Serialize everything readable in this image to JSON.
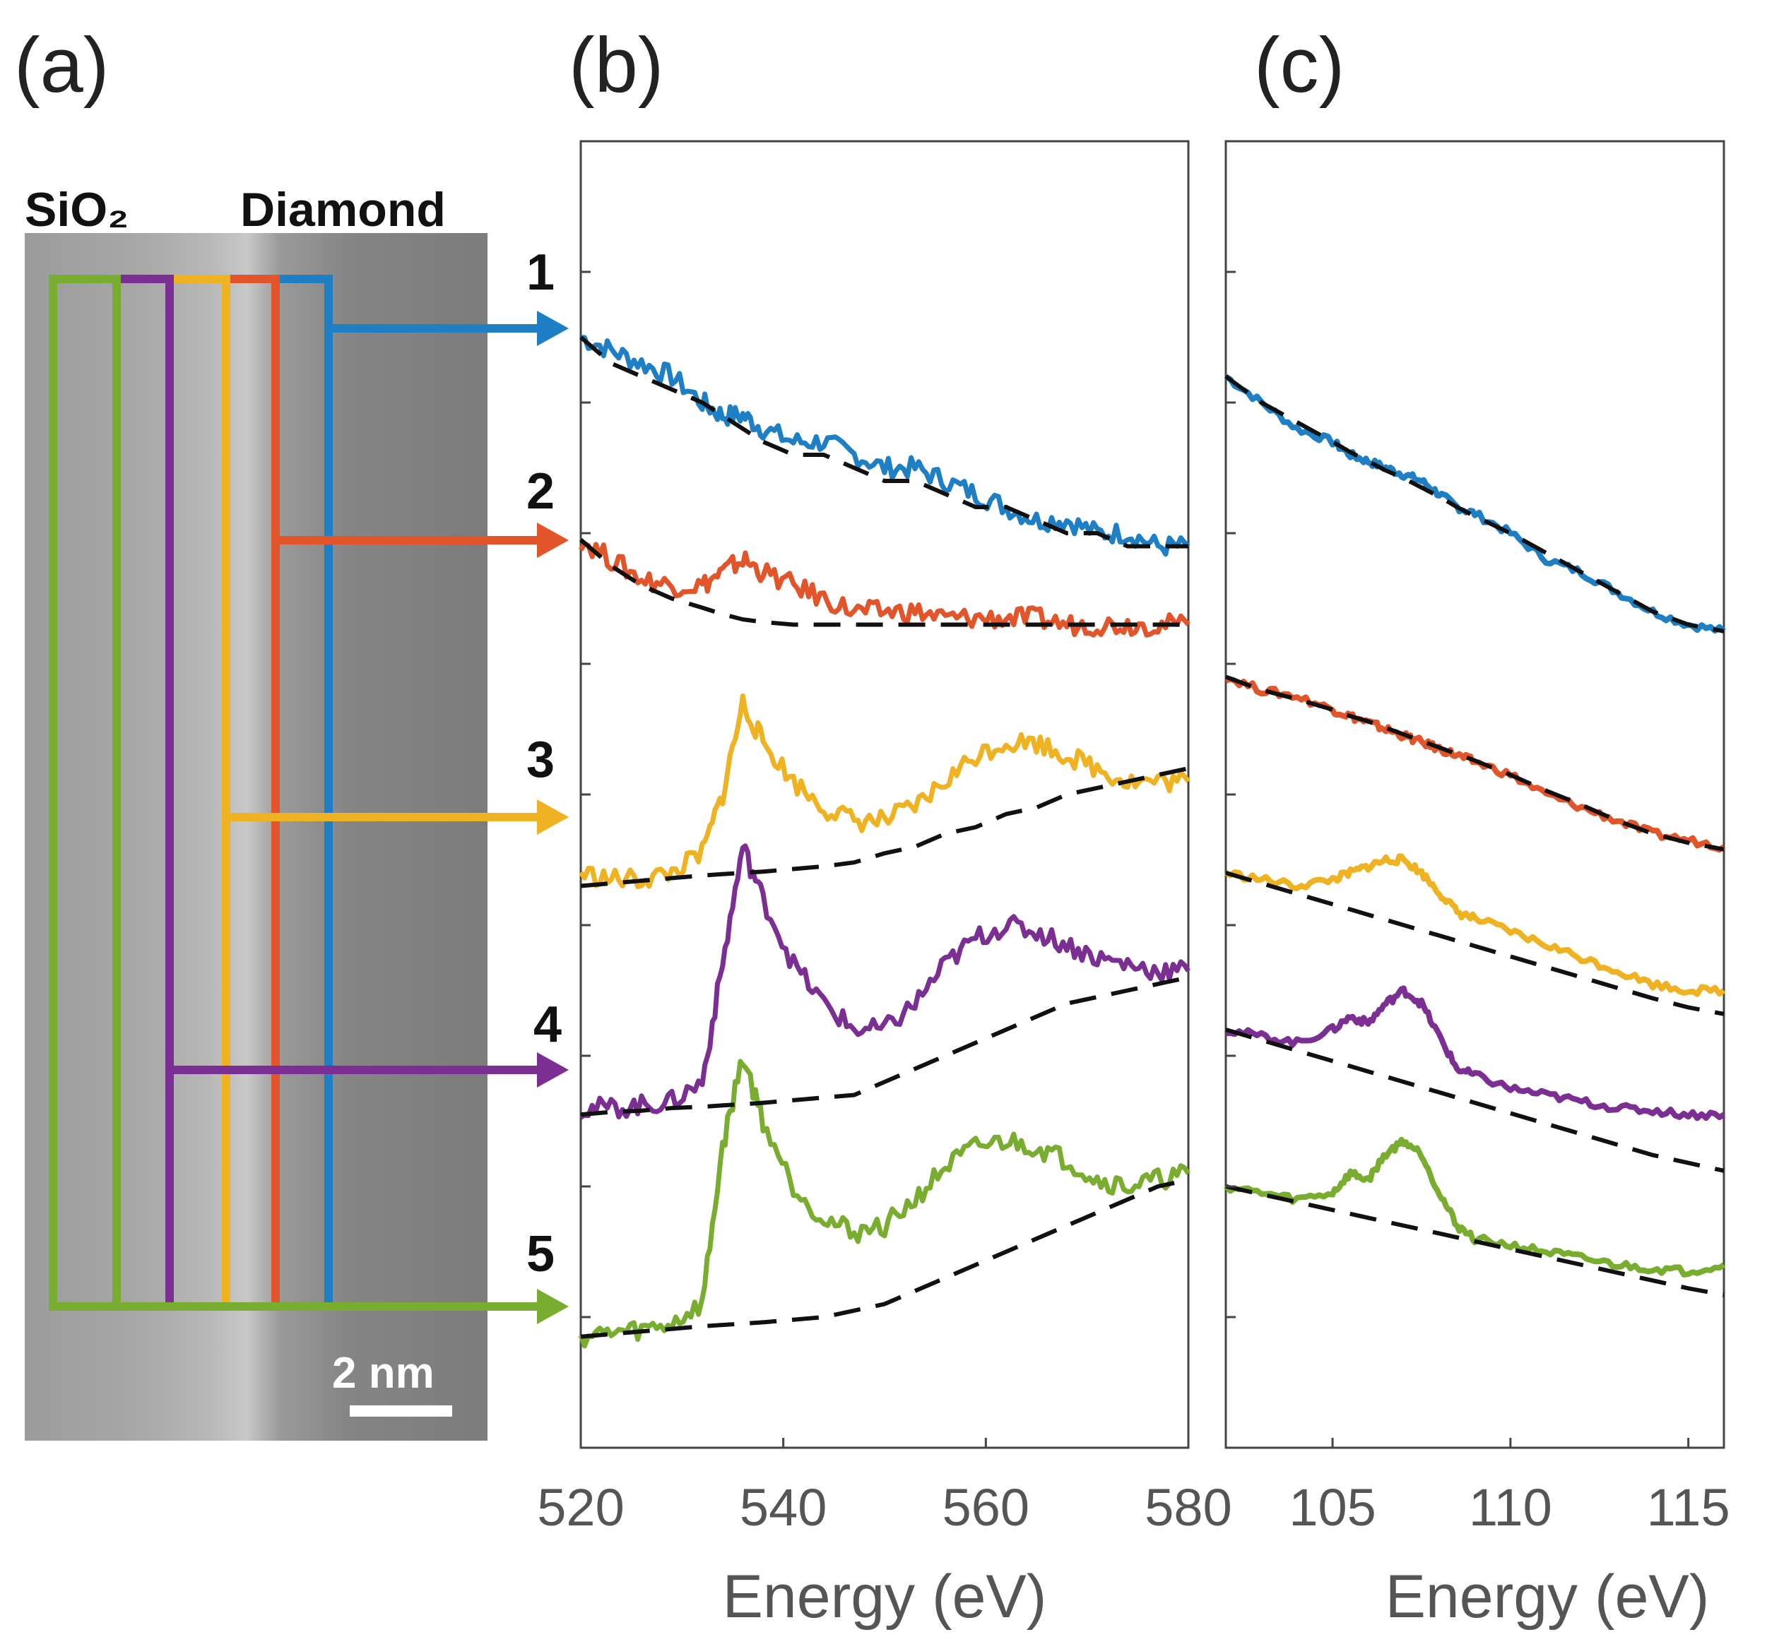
{
  "figure": {
    "panel_labels": [
      "(a)",
      "(b)",
      "(c)"
    ]
  },
  "micrograph": {
    "left_label": "SiO₂",
    "right_label": "Diamond",
    "scale_bar_label": "2 nm"
  },
  "spectrum_numbers": [
    "1",
    "2",
    "3",
    "4",
    "5"
  ],
  "colors": {
    "s1": "#1f7fc4",
    "s2": "#e2542a",
    "s3": "#efb223",
    "s4": "#7b2f93",
    "s5": "#78ad2f",
    "background_fit": "#111111"
  },
  "chart_data": [
    {
      "type": "line",
      "panel": "(b)",
      "title": "",
      "xlabel": "Energy (eV)",
      "ylabel": "",
      "xlim": [
        520,
        580
      ],
      "ylim": [
        0,
        1
      ],
      "y_ticks_labeled": false,
      "xticks": [
        "520",
        "540",
        "560",
        "580"
      ],
      "x": [
        520,
        523,
        526,
        529,
        532,
        534,
        536,
        538,
        541,
        544,
        547,
        550,
        553,
        556,
        559,
        562,
        565,
        568,
        571,
        574,
        577,
        580
      ],
      "series": [
        {
          "name": "1",
          "color": "#1f7fc4",
          "values": [
            0.85,
            0.84,
            0.83,
            0.82,
            0.8,
            0.79,
            0.79,
            0.78,
            0.77,
            0.77,
            0.76,
            0.75,
            0.75,
            0.74,
            0.73,
            0.72,
            0.71,
            0.71,
            0.7,
            0.7,
            0.69,
            0.69
          ]
        },
        {
          "name": "2",
          "color": "#e2542a",
          "values": [
            0.695,
            0.68,
            0.665,
            0.66,
            0.66,
            0.67,
            0.68,
            0.67,
            0.66,
            0.65,
            0.64,
            0.64,
            0.64,
            0.635,
            0.635,
            0.635,
            0.635,
            0.63,
            0.63,
            0.63,
            0.63,
            0.63
          ]
        },
        {
          "name": "3",
          "color": "#efb223",
          "values": [
            0.44,
            0.435,
            0.435,
            0.44,
            0.455,
            0.5,
            0.57,
            0.54,
            0.51,
            0.49,
            0.48,
            0.48,
            0.49,
            0.51,
            0.53,
            0.54,
            0.54,
            0.53,
            0.52,
            0.51,
            0.51,
            0.51
          ]
        },
        {
          "name": "4",
          "color": "#7b2f93",
          "values": [
            0.26,
            0.26,
            0.262,
            0.265,
            0.28,
            0.37,
            0.46,
            0.42,
            0.37,
            0.34,
            0.32,
            0.32,
            0.34,
            0.37,
            0.39,
            0.4,
            0.395,
            0.385,
            0.375,
            0.37,
            0.365,
            0.365
          ]
        },
        {
          "name": "5",
          "color": "#78ad2f",
          "values": [
            0.085,
            0.088,
            0.09,
            0.095,
            0.11,
            0.23,
            0.3,
            0.25,
            0.2,
            0.175,
            0.165,
            0.17,
            0.19,
            0.215,
            0.23,
            0.235,
            0.23,
            0.22,
            0.205,
            0.2,
            0.205,
            0.21
          ]
        }
      ],
      "backgrounds": [
        {
          "name": "1",
          "values": [
            0.85,
            0.83,
            0.82,
            0.81,
            0.8,
            0.79,
            0.78,
            0.77,
            0.76,
            0.76,
            0.75,
            0.74,
            0.74,
            0.73,
            0.72,
            0.72,
            0.71,
            0.7,
            0.7,
            0.69,
            0.69,
            0.69
          ]
        },
        {
          "name": "2",
          "values": [
            0.695,
            0.675,
            0.66,
            0.65,
            0.643,
            0.638,
            0.634,
            0.632,
            0.63,
            0.63,
            0.63,
            0.63,
            0.63,
            0.63,
            0.63,
            0.63,
            0.63,
            0.63,
            0.63,
            0.63,
            0.63,
            0.63
          ]
        },
        {
          "name": "3",
          "values": [
            0.43,
            0.432,
            0.434,
            0.436,
            0.438,
            0.439,
            0.44,
            0.441,
            0.443,
            0.445,
            0.448,
            0.455,
            0.46,
            0.47,
            0.475,
            0.485,
            0.49,
            0.5,
            0.505,
            0.51,
            0.515,
            0.52
          ]
        },
        {
          "name": "4",
          "values": [
            0.255,
            0.257,
            0.258,
            0.26,
            0.261,
            0.262,
            0.263,
            0.264,
            0.266,
            0.268,
            0.27,
            0.28,
            0.29,
            0.3,
            0.31,
            0.32,
            0.33,
            0.34,
            0.345,
            0.35,
            0.355,
            0.36
          ]
        },
        {
          "name": "5",
          "values": [
            0.085,
            0.087,
            0.089,
            0.091,
            0.093,
            0.094,
            0.095,
            0.096,
            0.098,
            0.1,
            0.105,
            0.11,
            0.12,
            0.13,
            0.14,
            0.15,
            0.16,
            0.17,
            0.18,
            0.19,
            0.2,
            0.205
          ]
        }
      ]
    },
    {
      "type": "line",
      "panel": "(c)",
      "title": "",
      "xlabel": "Energy (eV)",
      "ylabel": "",
      "xlim": [
        102,
        116
      ],
      "ylim": [
        0,
        1
      ],
      "y_ticks_labeled": false,
      "xticks": [
        "105",
        "110",
        "115"
      ],
      "x": [
        102,
        103,
        104,
        105,
        105.5,
        106,
        106.5,
        107,
        107.5,
        108,
        108.5,
        109,
        110,
        111,
        112,
        113,
        114,
        115,
        116
      ],
      "series": [
        {
          "name": "1",
          "color": "#1f7fc4",
          "values": [
            0.82,
            0.8,
            0.78,
            0.77,
            0.76,
            0.755,
            0.75,
            0.745,
            0.74,
            0.73,
            0.72,
            0.715,
            0.7,
            0.68,
            0.67,
            0.655,
            0.64,
            0.63,
            0.625
          ]
        },
        {
          "name": "2",
          "color": "#e2542a",
          "values": [
            0.59,
            0.58,
            0.575,
            0.565,
            0.56,
            0.555,
            0.55,
            0.545,
            0.54,
            0.535,
            0.53,
            0.525,
            0.515,
            0.5,
            0.49,
            0.48,
            0.47,
            0.465,
            0.46
          ]
        },
        {
          "name": "3",
          "color": "#efb223",
          "values": [
            0.44,
            0.435,
            0.43,
            0.435,
            0.44,
            0.445,
            0.45,
            0.45,
            0.44,
            0.425,
            0.41,
            0.405,
            0.395,
            0.385,
            0.375,
            0.365,
            0.355,
            0.35,
            0.35
          ]
        },
        {
          "name": "4",
          "color": "#7b2f93",
          "values": [
            0.32,
            0.315,
            0.31,
            0.32,
            0.33,
            0.325,
            0.34,
            0.35,
            0.34,
            0.315,
            0.29,
            0.285,
            0.275,
            0.27,
            0.265,
            0.26,
            0.258,
            0.255,
            0.255
          ]
        },
        {
          "name": "5",
          "color": "#78ad2f",
          "values": [
            0.2,
            0.195,
            0.19,
            0.195,
            0.21,
            0.205,
            0.225,
            0.235,
            0.225,
            0.195,
            0.17,
            0.16,
            0.155,
            0.15,
            0.145,
            0.14,
            0.137,
            0.135,
            0.14
          ]
        }
      ],
      "backgrounds": [
        {
          "name": "1",
          "values": [
            0.82,
            0.8,
            0.785,
            0.77,
            0.762,
            0.755,
            0.748,
            0.742,
            0.735,
            0.728,
            0.72,
            0.713,
            0.7,
            0.685,
            0.67,
            0.655,
            0.64,
            0.63,
            0.625
          ]
        },
        {
          "name": "2",
          "values": [
            0.59,
            0.58,
            0.573,
            0.565,
            0.56,
            0.556,
            0.551,
            0.546,
            0.541,
            0.536,
            0.531,
            0.526,
            0.515,
            0.503,
            0.492,
            0.48,
            0.47,
            0.463,
            0.458
          ]
        },
        {
          "name": "3",
          "values": [
            0.44,
            0.432,
            0.424,
            0.416,
            0.412,
            0.408,
            0.404,
            0.4,
            0.396,
            0.392,
            0.388,
            0.384,
            0.376,
            0.368,
            0.36,
            0.352,
            0.344,
            0.337,
            0.332
          ]
        },
        {
          "name": "4",
          "values": [
            0.32,
            0.312,
            0.304,
            0.296,
            0.292,
            0.288,
            0.284,
            0.28,
            0.276,
            0.272,
            0.268,
            0.264,
            0.256,
            0.248,
            0.24,
            0.232,
            0.224,
            0.218,
            0.212
          ]
        },
        {
          "name": "5",
          "values": [
            0.2,
            0.194,
            0.188,
            0.182,
            0.179,
            0.176,
            0.173,
            0.17,
            0.167,
            0.164,
            0.161,
            0.158,
            0.152,
            0.146,
            0.14,
            0.134,
            0.128,
            0.122,
            0.117
          ]
        }
      ]
    }
  ]
}
